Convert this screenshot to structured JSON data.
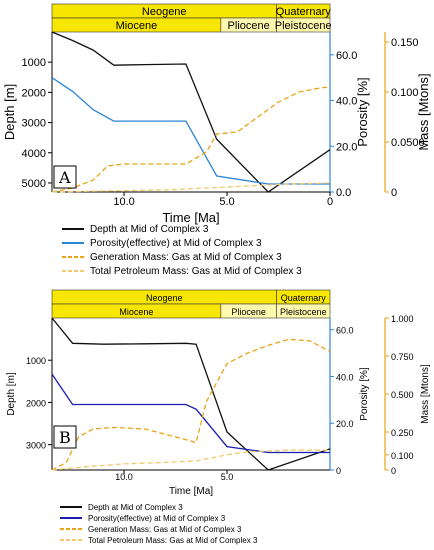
{
  "chart_data": [
    {
      "panel_label": "A",
      "type": "line",
      "xlabel": "Time [Ma]",
      "x_ticks": [
        "10.0",
        "5.0",
        "0"
      ],
      "xlim": [
        13.5,
        0
      ],
      "eras": [
        {
          "label": "Neogene",
          "from": 13.5,
          "to": 2.6
        },
        {
          "label": "Quaternary",
          "from": 2.6,
          "to": 0
        }
      ],
      "epochs": [
        {
          "label": "Miocene",
          "from": 13.5,
          "to": 5.3
        },
        {
          "label": "Pliocene",
          "from": 5.3,
          "to": 2.6
        },
        {
          "label": "Pleistocene",
          "from": 2.6,
          "to": 0
        }
      ],
      "depth_axis": {
        "label": "Depth [m]",
        "ticks": [
          "1000",
          "2000",
          "3000",
          "4000",
          "5000"
        ],
        "range": [
          0,
          5300
        ]
      },
      "porosity_axis": {
        "label": "Porosity [%]",
        "ticks": [
          "0.0",
          "20.0",
          "40.0",
          "60.0"
        ],
        "range": [
          0,
          70
        ]
      },
      "mass_axis": {
        "label": "Mass [Mtons]",
        "ticks": [
          "0",
          "0.0500",
          "0.100",
          "0.150"
        ],
        "range": [
          0,
          0.16
        ]
      },
      "series": [
        {
          "name": "Depth at Mid of Complex 3",
          "axis": "depth",
          "color": "#111111",
          "dash": "",
          "x": [
            13.5,
            12.5,
            11.5,
            10.5,
            9.0,
            7.0,
            5.5,
            3.0,
            0.0
          ],
          "y": [
            0,
            280,
            600,
            1100,
            1080,
            1060,
            3550,
            5300,
            3900
          ]
        },
        {
          "name": "Porosity(effective) at Mid of Complex 3",
          "axis": "porosity",
          "color": "#2e86d6",
          "dash": "",
          "x": [
            13.5,
            12.5,
            11.5,
            10.5,
            9.0,
            7.0,
            5.5,
            3.0,
            0.0
          ],
          "y": [
            50,
            44,
            36,
            31,
            31,
            31,
            7,
            3.5,
            3.5
          ]
        },
        {
          "name": "Generation Mass: Gas at Mid of Complex 3",
          "axis": "mass",
          "color": "#e8a317",
          "dash": "5,3",
          "x": [
            13.5,
            12.5,
            11.5,
            10.8,
            10.0,
            9.0,
            7.0,
            6.0,
            5.5,
            4.5,
            3.5,
            2.5,
            1.5,
            0.5,
            0.0
          ],
          "y": [
            0,
            0.004,
            0.012,
            0.026,
            0.028,
            0.028,
            0.028,
            0.04,
            0.058,
            0.06,
            0.075,
            0.09,
            0.1,
            0.104,
            0.105
          ]
        },
        {
          "name": "Total Petroleum Mass: Gas at Mid of Complex 3",
          "axis": "mass",
          "color": "#f2c96b",
          "dash": "5,3",
          "x": [
            13.5,
            11.0,
            8.0,
            6.0,
            4.0,
            2.0,
            0.0
          ],
          "y": [
            0,
            0.001,
            0.002,
            0.004,
            0.006,
            0.008,
            0.009
          ]
        }
      ]
    },
    {
      "panel_label": "B",
      "type": "line",
      "xlabel": "Time [Ma]",
      "x_ticks": [
        "10.0",
        "5.0"
      ],
      "xlim": [
        13.5,
        0
      ],
      "eras": [
        {
          "label": "Neogene",
          "from": 13.5,
          "to": 2.6
        },
        {
          "label": "Quaternary",
          "from": 2.6,
          "to": 0
        }
      ],
      "epochs": [
        {
          "label": "Miocene",
          "from": 13.5,
          "to": 5.3
        },
        {
          "label": "Pliocene",
          "from": 5.3,
          "to": 2.6
        },
        {
          "label": "Pleistocene",
          "from": 2.6,
          "to": 0
        }
      ],
      "depth_axis": {
        "label": "Depth [m]",
        "ticks": [
          "1000",
          "2000",
          "3000"
        ],
        "range": [
          0,
          3600
        ]
      },
      "porosity_axis": {
        "label": "Porosity [%]",
        "ticks": [
          "0",
          "20.0",
          "40.0",
          "60.0"
        ],
        "range": [
          0,
          65
        ]
      },
      "mass_axis": {
        "label": "Mass [Mtons]",
        "ticks": [
          "0",
          "0.100",
          "0.250",
          "0.500",
          "0.750",
          "1.000"
        ],
        "range": [
          0,
          1.0
        ]
      },
      "series": [
        {
          "name": "Depth at Mid of Complex 3",
          "axis": "depth",
          "color": "#111111",
          "dash": "",
          "x": [
            13.5,
            12.5,
            11.0,
            9.0,
            7.0,
            6.5,
            5.0,
            3.0,
            0.0
          ],
          "y": [
            0,
            600,
            620,
            610,
            600,
            620,
            2700,
            3900,
            3100
          ]
        },
        {
          "name": "Porosity(effective) at Mid of Complex 3",
          "axis": "porosity",
          "color": "#1c1cb0",
          "dash": "",
          "x": [
            13.5,
            12.5,
            11.5,
            9.0,
            7.0,
            6.5,
            5.0,
            3.0,
            0.0
          ],
          "y": [
            41,
            28,
            28,
            28,
            28,
            26,
            10,
            7.5,
            7.5
          ]
        },
        {
          "name": "Generation Mass: Gas at Mid of Complex 3",
          "axis": "mass",
          "color": "#e8a317",
          "dash": "5,3",
          "x": [
            13.5,
            12.8,
            12.2,
            11.5,
            10.5,
            9.0,
            7.0,
            6.5,
            6.0,
            5.0,
            4.0,
            3.0,
            2.0,
            1.0,
            0.0
          ],
          "y": [
            0,
            0.05,
            0.22,
            0.27,
            0.28,
            0.27,
            0.2,
            0.18,
            0.45,
            0.7,
            0.77,
            0.82,
            0.86,
            0.85,
            0.78
          ]
        },
        {
          "name": "Total Petroleum Mass: Gas at Mid of Complex 3",
          "axis": "mass",
          "color": "#f2c96b",
          "dash": "5,3",
          "x": [
            13.5,
            12.0,
            10.0,
            8.0,
            6.5,
            5.0,
            4.0,
            2.0,
            0.0
          ],
          "y": [
            0,
            0.02,
            0.04,
            0.05,
            0.06,
            0.1,
            0.12,
            0.13,
            0.13
          ]
        }
      ]
    }
  ]
}
